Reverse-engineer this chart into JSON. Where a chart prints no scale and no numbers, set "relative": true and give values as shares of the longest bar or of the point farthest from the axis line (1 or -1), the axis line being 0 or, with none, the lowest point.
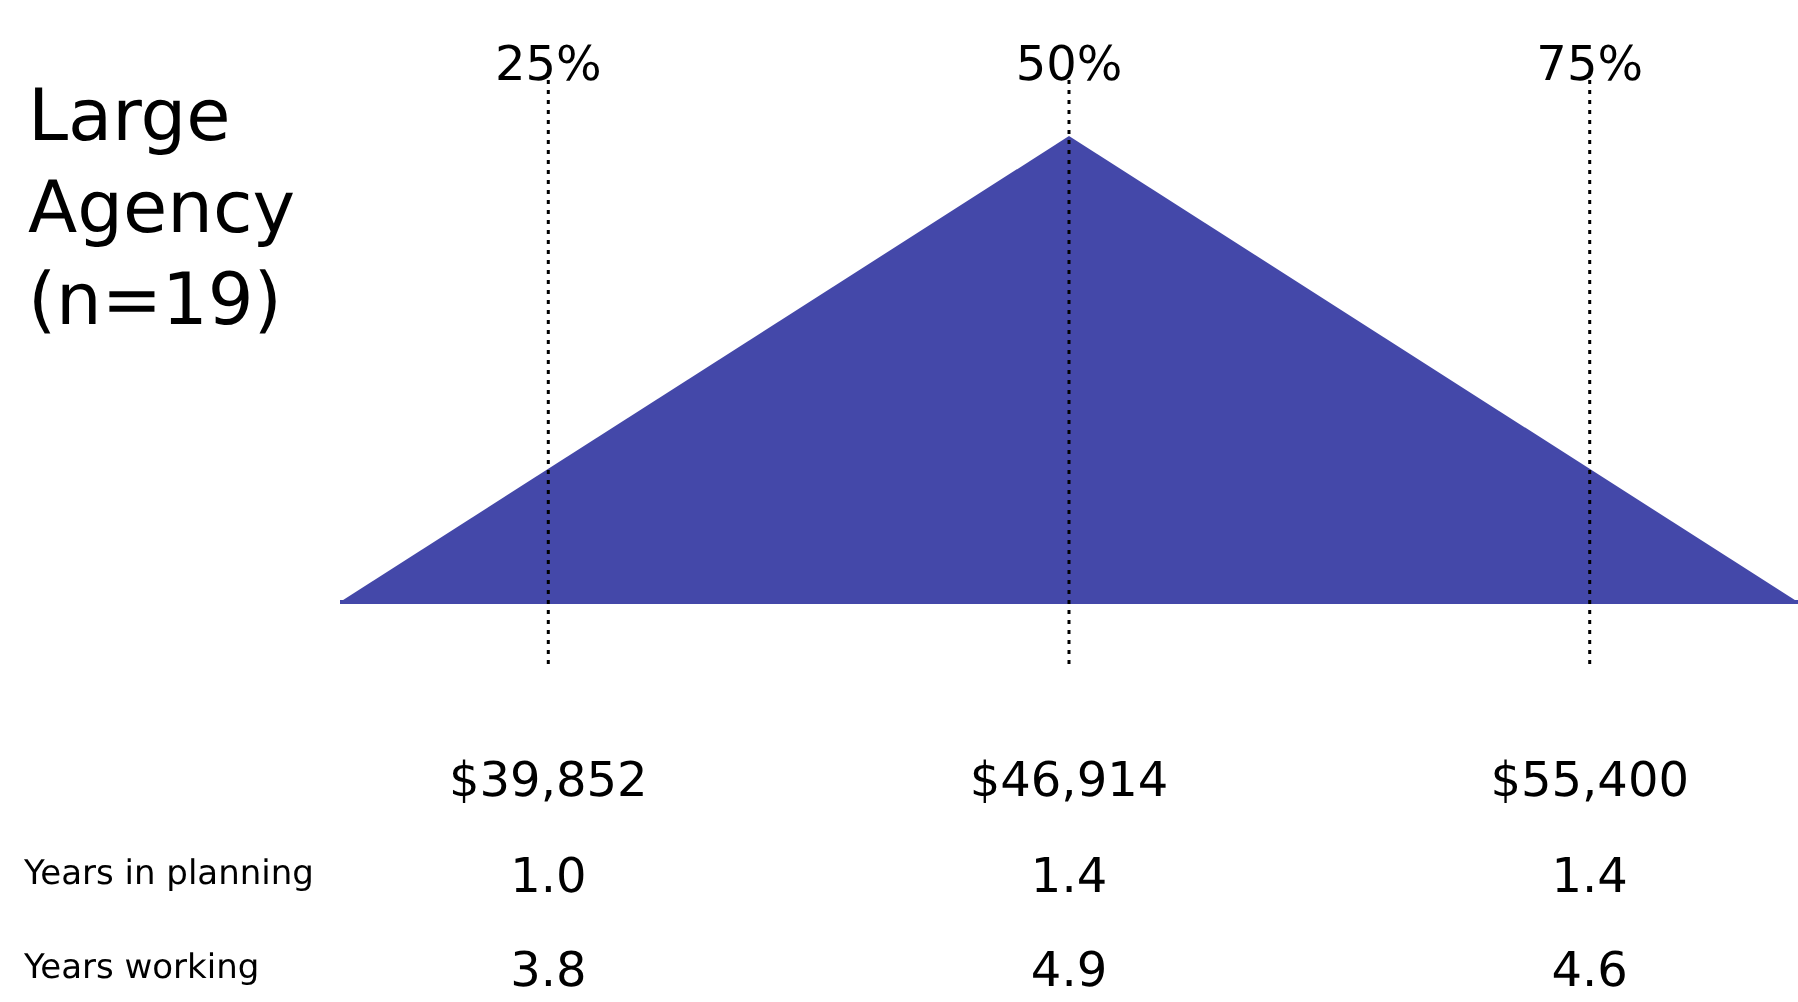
{
  "chart_data": {
    "type": "area",
    "title": "Large Agency (n=19)",
    "relative": true,
    "x": [
      15,
      50,
      85
    ],
    "values": [
      0,
      1,
      0
    ],
    "color": "#4448a9",
    "xlim": [
      15,
      85
    ],
    "xticks": [
      {
        "value": 25,
        "label": "25%"
      },
      {
        "value": 50,
        "label": "50%"
      },
      {
        "value": 75,
        "label": "75%"
      }
    ],
    "ref_lines": [
      {
        "axis": "x",
        "value": 25,
        "line_style": "dotted"
      },
      {
        "axis": "x",
        "value": 50,
        "line_style": "dotted"
      },
      {
        "axis": "x",
        "value": 75,
        "line_style": "dotted"
      }
    ],
    "annotations": [
      "$39,852",
      "$46,914",
      "$55,400",
      "Years in planning",
      "1.0",
      "1.4",
      "1.4",
      "Years working",
      "3.8",
      "4.9",
      "4.6"
    ],
    "legend": false
  }
}
